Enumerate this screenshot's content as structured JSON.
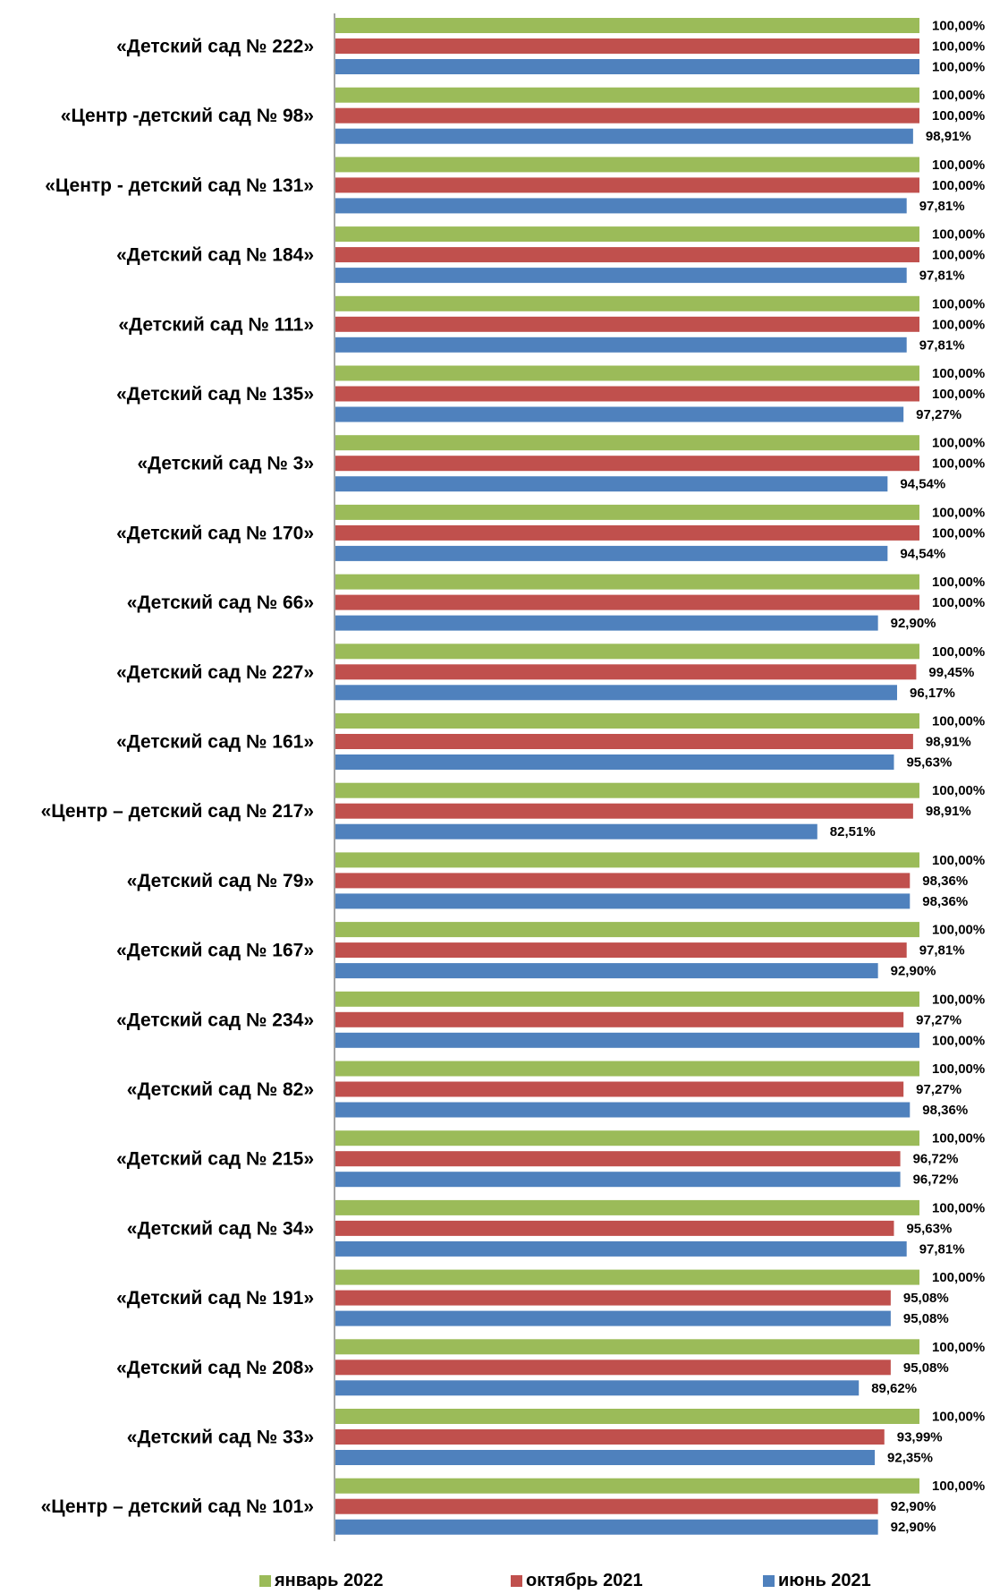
{
  "chart_data": {
    "type": "bar",
    "orientation": "horizontal",
    "title": "",
    "xlabel": "",
    "ylabel": "",
    "xlim": [
      0,
      100
    ],
    "grid": false,
    "legend_position": "bottom",
    "categories": [
      "«Детский сад № 222»",
      "«Центр -детский сад № 98»",
      "«Центр - детский сад № 131»",
      "«Детский сад № 184»",
      "«Детский сад № 111»",
      "«Детский сад № 135»",
      "«Детский сад № 3»",
      "«Детский  сад № 170»",
      "«Детский сад № 66»",
      "«Детский сад № 227»",
      "«Детский сад № 161»",
      "«Центр – детский сад № 217»",
      "«Детский сад № 79»",
      "«Детский сад № 167»",
      "«Детский сад № 234»",
      "«Детский сад № 82»",
      "«Детский сад № 215»",
      "«Детский сад № 34»",
      "«Детский сад № 191»",
      "«Детский сад № 208»",
      "«Детский сад № 33»",
      "«Центр – детский сад № 101»"
    ],
    "series": [
      {
        "name": "январь 2022",
        "color": "#9BBB59",
        "values": [
          100,
          100,
          100,
          100,
          100,
          100,
          100,
          100,
          100,
          100,
          100,
          100,
          100,
          100,
          100,
          100,
          100,
          100,
          100,
          100,
          100,
          100
        ],
        "labels": [
          "100,00%",
          "100,00%",
          "100,00%",
          "100,00%",
          "100,00%",
          "100,00%",
          "100,00%",
          "100,00%",
          "100,00%",
          "100,00%",
          "100,00%",
          "100,00%",
          "100,00%",
          "100,00%",
          "100,00%",
          "100,00%",
          "100,00%",
          "100,00%",
          "100,00%",
          "100,00%",
          "100,00%",
          "100,00%"
        ]
      },
      {
        "name": "октябрь 2021",
        "color": "#C0504D",
        "values": [
          100,
          100,
          100,
          100,
          100,
          100,
          100,
          100,
          100,
          99.45,
          98.91,
          98.91,
          98.36,
          97.81,
          97.27,
          97.27,
          96.72,
          95.63,
          95.08,
          95.08,
          93.99,
          92.9
        ],
        "labels": [
          "100,00%",
          "100,00%",
          "100,00%",
          "100,00%",
          "100,00%",
          "100,00%",
          "100,00%",
          "100,00%",
          "100,00%",
          "99,45%",
          "98,91%",
          "98,91%",
          "98,36%",
          "97,81%",
          "97,27%",
          "97,27%",
          "96,72%",
          "95,63%",
          "95,08%",
          "95,08%",
          "93,99%",
          "92,90%"
        ]
      },
      {
        "name": "июнь 2021",
        "color": "#4F81BD",
        "values": [
          100,
          98.91,
          97.81,
          97.81,
          97.81,
          97.27,
          94.54,
          94.54,
          92.9,
          96.17,
          95.63,
          82.51,
          98.36,
          92.9,
          100,
          98.36,
          96.72,
          97.81,
          95.08,
          89.62,
          92.35,
          92.9
        ],
        "labels": [
          "100,00%",
          "98,91%",
          "97,81%",
          "97,81%",
          "97,81%",
          "97,27%",
          "94,54%",
          "94,54%",
          "92,90%",
          "96,17%",
          "95,63%",
          "82,51%",
          "98,36%",
          "92,90%",
          "100,00%",
          "98,36%",
          "96,72%",
          "97,81%",
          "95,08%",
          "89,62%",
          "92,35%",
          "92,90%"
        ]
      }
    ]
  }
}
